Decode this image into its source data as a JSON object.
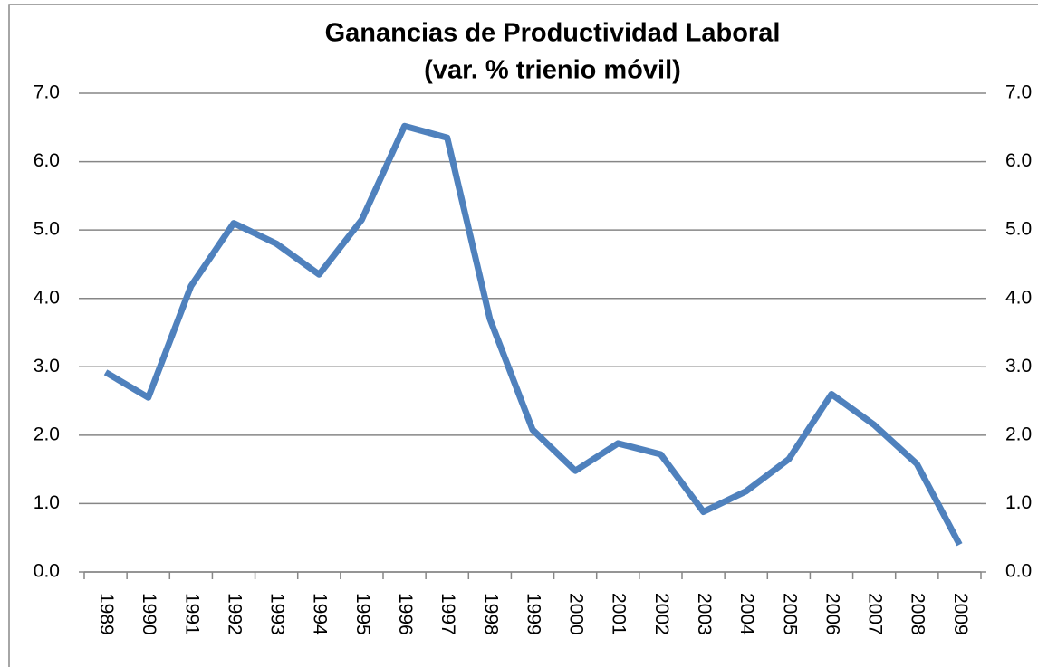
{
  "chart_data": {
    "type": "line",
    "title": [
      "Ganancias de Productividad Laboral",
      "(var. % trienio móvil)"
    ],
    "categories": [
      "1989",
      "1990",
      "1991",
      "1992",
      "1993",
      "1994",
      "1995",
      "1996",
      "1997",
      "1998",
      "1999",
      "2000",
      "2001",
      "2002",
      "2003",
      "2004",
      "2005",
      "2006",
      "2007",
      "2008",
      "2009"
    ],
    "series": [
      {
        "color": "#4f81bd",
        "values": [
          2.92,
          2.55,
          4.18,
          5.1,
          4.8,
          4.35,
          5.15,
          6.52,
          6.35,
          3.7,
          2.08,
          1.48,
          1.88,
          1.72,
          0.88,
          1.18,
          1.65,
          2.6,
          2.15,
          1.58,
          0.4
        ]
      }
    ],
    "ylim": [
      0,
      7
    ],
    "yticks": [
      {
        "value": 0,
        "label": "0.0"
      },
      {
        "value": 1,
        "label": "1.0"
      },
      {
        "value": 2,
        "label": "2.0"
      },
      {
        "value": 3,
        "label": "3.0"
      },
      {
        "value": 4,
        "label": "4.0"
      },
      {
        "value": 5,
        "label": "5.0"
      },
      {
        "value": 6,
        "label": "6.0"
      },
      {
        "value": 7,
        "label": "7.0"
      }
    ],
    "y2lim": [
      0,
      7
    ],
    "y2ticks": [
      {
        "value": 0,
        "label": "0.0"
      },
      {
        "value": 1,
        "label": "1.0"
      },
      {
        "value": 2,
        "label": "2.0"
      },
      {
        "value": 3,
        "label": "3.0"
      },
      {
        "value": 4,
        "label": "4.0"
      },
      {
        "value": 5,
        "label": "5.0"
      },
      {
        "value": 6,
        "label": "6.0"
      },
      {
        "value": 7,
        "label": "7.0"
      }
    ],
    "grid": true
  }
}
